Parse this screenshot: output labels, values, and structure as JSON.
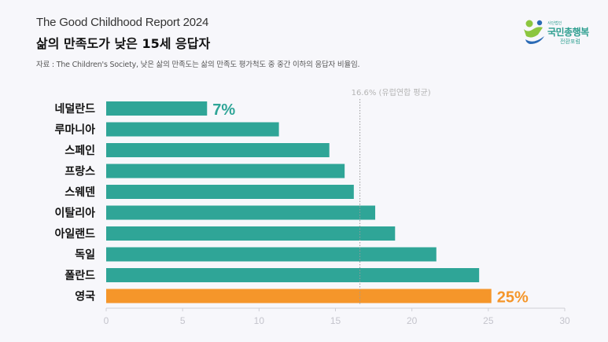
{
  "header": {
    "report_title": "The Good Childhood Report 2024",
    "main_title": "삶의 만족도가 낮은 15세 응답자",
    "source": "자료 : The Children's Society, 낮은 삶의 만족도는 삶의 만족도 평가척도 중 중간 이하의 응답자 비율임."
  },
  "logo": {
    "small_text": "사단법인",
    "main_text": "국민총행복",
    "sub_text": "전환포럼",
    "colors": {
      "green": "#8cc63f",
      "blue": "#2a6ab5",
      "teal": "#2c9e8f"
    }
  },
  "chart_data": {
    "type": "bar",
    "orientation": "horizontal",
    "categories": [
      "네덜란드",
      "루마니아",
      "스페인",
      "프랑스",
      "스웨덴",
      "이탈리아",
      "아일랜드",
      "독일",
      "폴란드",
      "영국"
    ],
    "values": [
      6.6,
      11.3,
      14.6,
      15.6,
      16.2,
      17.6,
      18.9,
      21.6,
      24.4,
      25.2
    ],
    "data_labels": {
      "네덜란드": "7%",
      "영국": "25%"
    },
    "highlight": "영국",
    "reference_line": {
      "value": 16.6,
      "label": "16.6% (유럽연합 평균)"
    },
    "xlim": [
      0,
      30
    ],
    "xticks": [
      0,
      5,
      10,
      15,
      20,
      25,
      30
    ],
    "grid": false,
    "colors": {
      "bar": "#2fa597",
      "highlight": "#f5962a",
      "reference": "#9a9a9a"
    }
  }
}
